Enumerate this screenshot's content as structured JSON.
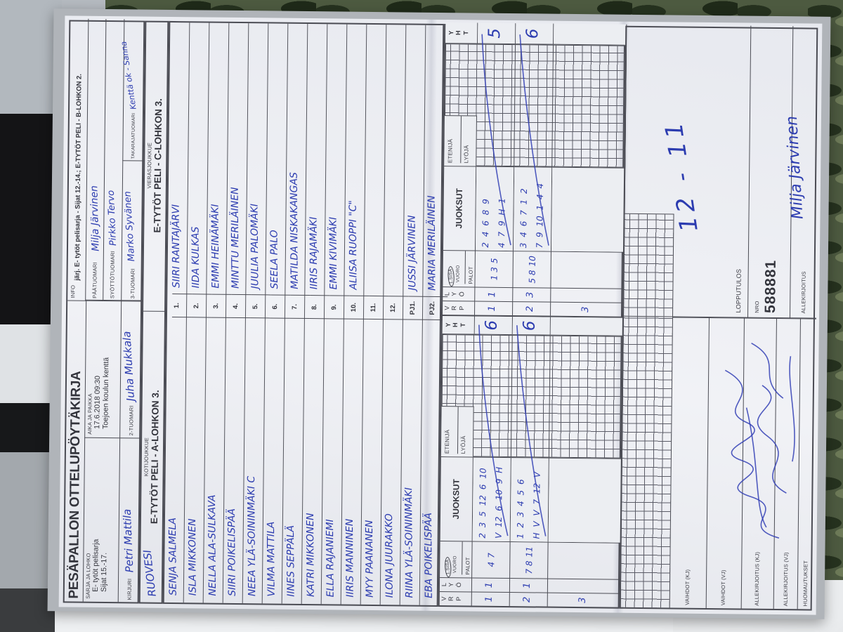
{
  "colors": {
    "ink_blue": "#2c3cb0",
    "paper": "#eceef2",
    "camo_green": "#4d5a40",
    "clipboard_gray": "#b0b4b9"
  },
  "header": {
    "title": "PESÄPALLON OTTELUPÖYTÄKIRJA",
    "sarja_label": "SARJA JA LOHKO",
    "sarja_line1": "E- tytöt pelisarja",
    "sarja_line2": "Sijat 15.-17.",
    "kirjuri_label": "KIRJURI",
    "kirjuri_value": "Petri Mattila",
    "aika_label": "AIKA JA PAIKKA",
    "aika_line1": "17.6.2018 09:30",
    "aika_line2": "Toejoen koulun kenttä",
    "tuomari2_label": "2-TUOMARI",
    "tuomari2_value": "Juha Mukkala",
    "info_label": "INFO",
    "info_value": "järj. E- tytöt pelisarja - Sijat 12.-14.; E-TYTÖT PELI - B-LOHKON 2.",
    "paatuomari_label": "PÄÄTUOMARI",
    "paatuomari_value": "Milja Järvinen",
    "syottotuomari_label": "SYÖTTÖTUOMARI",
    "syottotuomari_value": "Pirkko Tervo",
    "tuomari3_label": "3-TUOMARI",
    "tuomari3_value": "Marko Syvänen",
    "takaraja_label": "TAKARAJATUOMARI",
    "takaraja_value": "Kenttä ok - Sanna"
  },
  "teams": {
    "home_label": "KOTIJOUKKUE",
    "home_name": "E-TYTÖT PELI - A-LOHKON 3.",
    "home_written": "RUOVESI",
    "away_label": "VIERASJOUKKUE",
    "away_name": "E-TYTÖT PELI - C-LOHKON 3."
  },
  "roster": {
    "rows": [
      {
        "no": "1.",
        "home": "SENJA SALMELA",
        "away": "SIIRI RANTAJÄRVI"
      },
      {
        "no": "2.",
        "home": "ISLA MIKKONEN",
        "away": "IIDA KULKAS"
      },
      {
        "no": "3.",
        "home": "NELLA ALA-SULKAVA",
        "away": "EMMI HEINÄMÄKI"
      },
      {
        "no": "4.",
        "home": "SIIRI POIKELISPÄÄ",
        "away": "MINTTU MERILÄINEN"
      },
      {
        "no": "5.",
        "home": "NEEA YLÄ-SOININMÄKI C",
        "away": "JUULIA PALOMÄKI"
      },
      {
        "no": "6.",
        "home": "VILMA MATTILA",
        "away": "SEELA PALO"
      },
      {
        "no": "7.",
        "home": "IINES SEPPÄLÄ",
        "away": "MATILDA NISKAKANGAS"
      },
      {
        "no": "8.",
        "home": "KATRI MIKKONEN",
        "away": "IIRIS RAJAMÄKI"
      },
      {
        "no": "9.",
        "home": "ELLA RAJANIEMI",
        "away": "EMMI KIVIMÄKI"
      },
      {
        "no": "10.",
        "home": "IIRIS MANNINEN",
        "away": "ALIISA RUOPPI \"C\""
      },
      {
        "no": "11.",
        "home": "MYY PAANANEN",
        "away": ""
      },
      {
        "no": "12.",
        "home": "ILONA JUURAKKO",
        "away": ""
      },
      {
        "no": "PJ1.",
        "home": "RIINA YLÄ-SOININMÄKI",
        "away": "JUSSI JÄRVINEN"
      },
      {
        "no": "PJ2.",
        "home": "EBA POIKELISPÄÄ",
        "away": "MARIA MERILÄINEN"
      }
    ]
  },
  "grid": {
    "letters_col1": "V\nR\nP",
    "letters_col2": "L\nY\nÖ",
    "sisa_label": "1.SISÄ",
    "vuoro_label": "VUORO",
    "palot_label": "PALOT",
    "juoksut_label": "JUOKSUT",
    "etenija_label": "ETENIJÄ",
    "lyoja_label": "LYÖJÄ",
    "yht_label": "Y\nH\nT",
    "home_rows": [
      {
        "v": "1",
        "l": "1",
        "sisa": "4",
        "palot": "7",
        "j1": "2 3 5 12 6 10",
        "j2": "V 12 6 10 9 H",
        "yht": "6"
      },
      {
        "v": "2",
        "l": "1",
        "sisa": "7 8",
        "palot": "11",
        "j1": "1 2 3 4 5 6",
        "j2": "H V V 7 12 V",
        "yht": "6"
      },
      {
        "v": "3",
        "l": "",
        "sisa": "",
        "palot": "",
        "j1": "",
        "j2": "",
        "yht": ""
      }
    ],
    "away_rows": [
      {
        "v": "1",
        "l": "1",
        "sisa": "1 3",
        "palot": "5",
        "j1": "2 4 6 8 9",
        "j2": "4 7 9 H 1",
        "yht": "5"
      },
      {
        "v": "2",
        "l": "3",
        "sisa": "5 8",
        "palot": "10",
        "j1": "3 4 6 7 1 2",
        "j2": "7 9 10 1 4 4",
        "yht": "6"
      },
      {
        "v": "3",
        "l": "",
        "sisa": "",
        "palot": "",
        "j1": "",
        "j2": "",
        "yht": ""
      }
    ]
  },
  "footer": {
    "vaihdot_kj_label": "VAIHDOT (KJ)",
    "vaihdot_vj_label": "VAIHDOT (VJ)",
    "allekirjoitus_kj_label": "ALLEKIRJOITUS (KJ)",
    "allekirjoitus_vj_label": "ALLEKIRJOITUS (VJ)",
    "huomautukset_label": "HUOMAUTUKSET",
    "lopputulos_label": "LOPPUTULOS",
    "lopputulos_value": "12 - 11",
    "nro_label": "NRO",
    "nro_value": "588881",
    "allekirjoitus_label": "ALLEKIRJOITUS",
    "allekirjoitus_value": "Milja Järvinen"
  }
}
